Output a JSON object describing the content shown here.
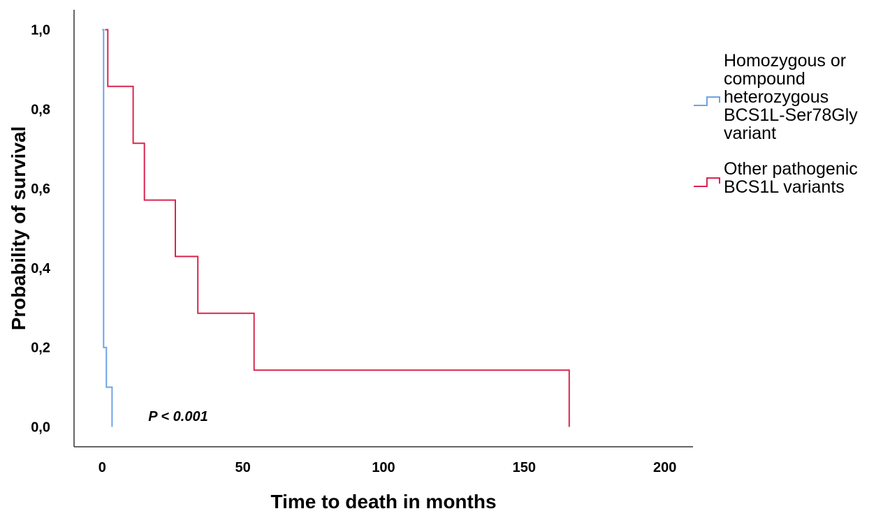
{
  "chart_data": {
    "type": "line",
    "subtype": "kaplan-meier-step",
    "title": "",
    "xlabel": "Time to death in months",
    "ylabel": "Probability of survival",
    "xlim": [
      -10,
      210
    ],
    "ylim": [
      -0.05,
      1.05
    ],
    "x_ticks": [
      0,
      50,
      100,
      150,
      200
    ],
    "x_tick_labels": [
      "0",
      "50",
      "100",
      "150",
      "200"
    ],
    "y_ticks": [
      0.0,
      0.2,
      0.4,
      0.6,
      0.8,
      1.0
    ],
    "y_tick_labels": [
      "0,0",
      "0,2",
      "0,4",
      "0,6",
      "0,8",
      "1,0"
    ],
    "grid": false,
    "legend_position": "right",
    "annotation": "P < 0.001",
    "series": [
      {
        "name_lines": [
          "Homozygous or",
          "compound",
          "heterozygous",
          "BCS1L-Ser78Gly",
          "variant"
        ],
        "color": "#6fa3e6",
        "x": [
          0,
          0.5,
          0.5,
          1.5,
          1.5,
          3.5,
          3.5
        ],
        "y": [
          1.0,
          1.0,
          0.2,
          0.2,
          0.1,
          0.1,
          0.0
        ]
      },
      {
        "name_lines": [
          "Other pathogenic",
          "BCS1L variants"
        ],
        "color": "#d9254f",
        "x": [
          1,
          2,
          2,
          11,
          11,
          15,
          15,
          26,
          26,
          34,
          34,
          54,
          54,
          166,
          166
        ],
        "y": [
          1.0,
          1.0,
          0.857,
          0.857,
          0.714,
          0.714,
          0.571,
          0.571,
          0.429,
          0.429,
          0.286,
          0.286,
          0.143,
          0.143,
          0.0
        ]
      }
    ]
  }
}
